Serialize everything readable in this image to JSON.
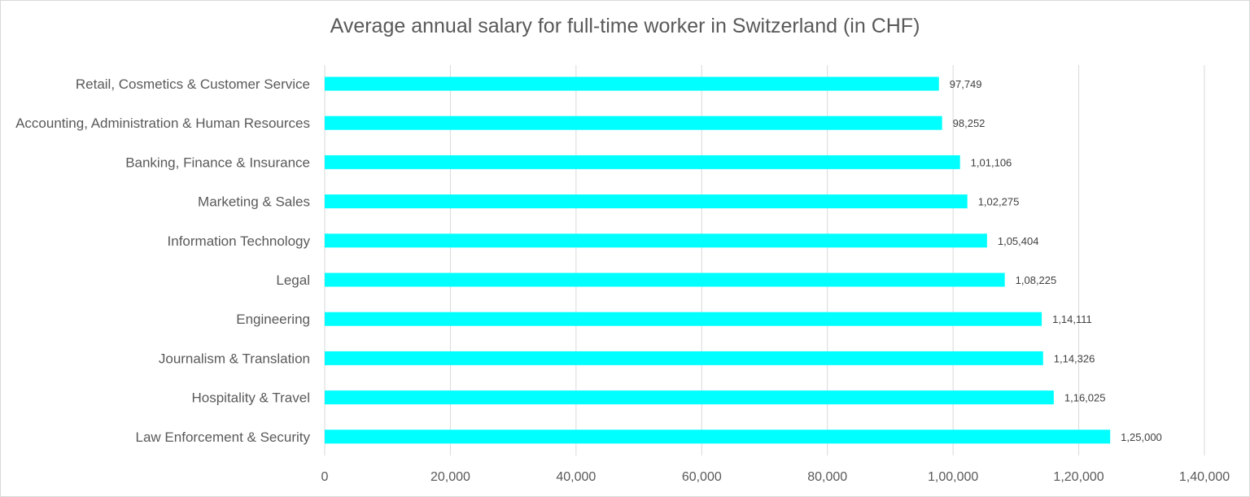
{
  "chart_data": {
    "type": "bar",
    "orientation": "horizontal",
    "title": "Average annual salary for full-time worker in Switzerland (in CHF)",
    "xlabel": "",
    "ylabel": "",
    "categories": [
      "Retail, Cosmetics & Customer Service",
      "Accounting, Administration & Human Resources",
      "Banking, Finance & Insurance",
      "Marketing & Sales",
      "Information Technology",
      "Legal",
      "Engineering",
      "Journalism & Translation",
      "Hospitality & Travel",
      "Law Enforcement & Security"
    ],
    "values": [
      97749,
      98252,
      101106,
      102275,
      105404,
      108225,
      114111,
      114326,
      116025,
      125000
    ],
    "data_labels": [
      "97,749",
      "98,252",
      "1,01,106",
      "1,02,275",
      "1,05,404",
      "1,08,225",
      "1,14,111",
      "1,14,326",
      "1,16,025",
      "1,25,000"
    ],
    "xlim": [
      0,
      140000
    ],
    "xticks": [
      0,
      20000,
      40000,
      60000,
      80000,
      100000,
      120000,
      140000
    ],
    "xtick_labels": [
      "0",
      "20,000",
      "40,000",
      "60,000",
      "80,000",
      "1,00,000",
      "1,20,000",
      "1,40,000"
    ],
    "grid": true,
    "legend": "none",
    "bar_color": "#00ffff",
    "grid_color": "#d9d9d9"
  }
}
